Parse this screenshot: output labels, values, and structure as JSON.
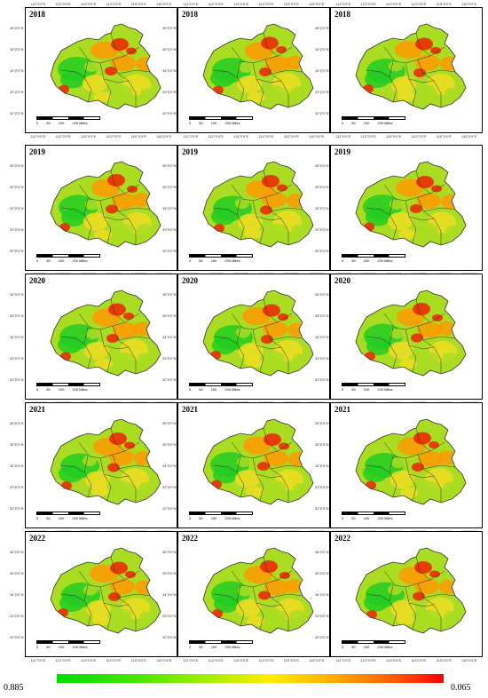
{
  "panels": [
    {
      "year": "2018"
    },
    {
      "year": "2018"
    },
    {
      "year": "2018"
    },
    {
      "year": "2019"
    },
    {
      "year": "2019"
    },
    {
      "year": "2019"
    },
    {
      "year": "2020"
    },
    {
      "year": "2020"
    },
    {
      "year": "2020"
    },
    {
      "year": "2021"
    },
    {
      "year": "2021"
    },
    {
      "year": "2021"
    },
    {
      "year": "2022"
    },
    {
      "year": "2022"
    },
    {
      "year": "2022"
    }
  ],
  "coordinate_labels": {
    "longitude": [
      "111°0'0\"E",
      "112°0'0\"E",
      "113°0'0\"E",
      "114°0'0\"E",
      "115°0'0\"E",
      "116°0'0\"E"
    ],
    "latitude": [
      "36°0'0\"N",
      "35°0'0\"N",
      "34°0'0\"N",
      "33°0'0\"N",
      "32°0'0\"N"
    ]
  },
  "scale_bar": {
    "labels": [
      "0",
      "50",
      "100",
      "200 Miles"
    ]
  },
  "legend": {
    "min_label": "0.885",
    "max_label": "0.065",
    "colors": [
      "#00dd00",
      "#aaee00",
      "#ffee00",
      "#ffaa00",
      "#ff0000"
    ]
  },
  "colors": {
    "green": "#22cc22",
    "yellow_green": "#aadd22",
    "yellow": "#eedd22",
    "orange": "#ff9900",
    "red": "#ee2200",
    "boundary": "#333333"
  }
}
